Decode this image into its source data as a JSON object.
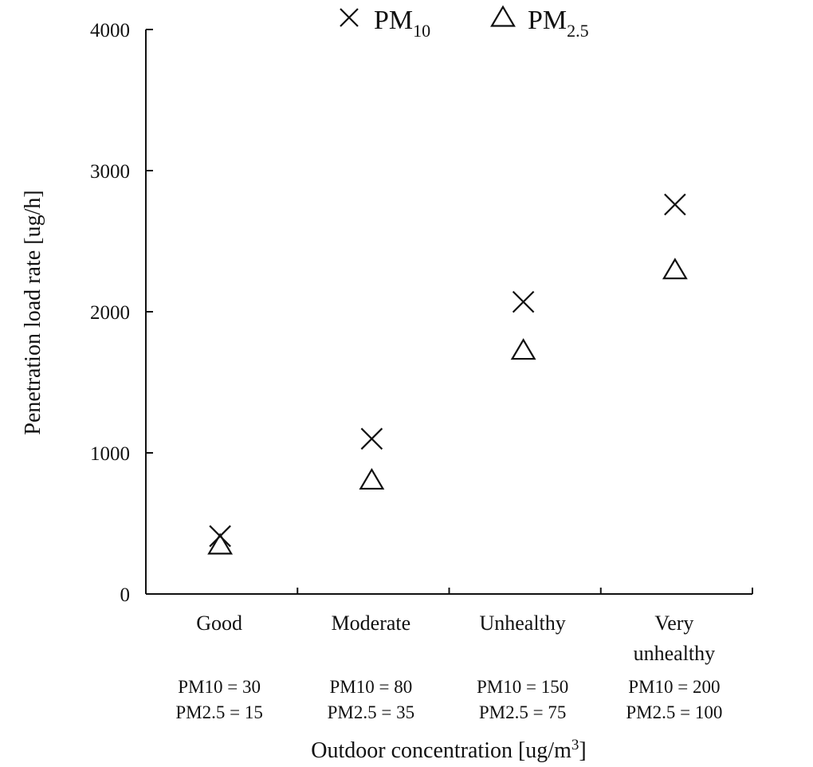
{
  "chart_data": {
    "type": "scatter",
    "title": "",
    "ylabel": "Penetration load rate [ug/h]",
    "xlabel_main": "Outdoor concentration [ug/m",
    "xlabel_sup": "3",
    "xlabel_end": "]",
    "ylim": [
      0,
      4000
    ],
    "yticks": [
      0,
      1000,
      2000,
      3000,
      4000
    ],
    "categories": [
      {
        "name_lines": [
          "Good"
        ],
        "pm10_label": "PM10 = 30",
        "pm25_label": "PM2.5 = 15"
      },
      {
        "name_lines": [
          "Moderate"
        ],
        "pm10_label": "PM10 = 80",
        "pm25_label": "PM2.5 = 35"
      },
      {
        "name_lines": [
          "Unhealthy"
        ],
        "pm10_label": "PM10 = 150",
        "pm25_label": "PM2.5 = 75"
      },
      {
        "name_lines": [
          "Very",
          "unhealthy"
        ],
        "pm10_label": "PM10 = 200",
        "pm25_label": "PM2.5 = 100"
      }
    ],
    "series": [
      {
        "name": "PM10",
        "legend_main": "PM",
        "legend_sub": "10",
        "marker": "x",
        "values": [
          410,
          1100,
          2070,
          2760
        ]
      },
      {
        "name": "PM2.5",
        "legend_main": "PM",
        "legend_sub": "2.5",
        "marker": "triangle",
        "values": [
          340,
          800,
          1720,
          2290
        ]
      }
    ],
    "legend_position": "top"
  }
}
